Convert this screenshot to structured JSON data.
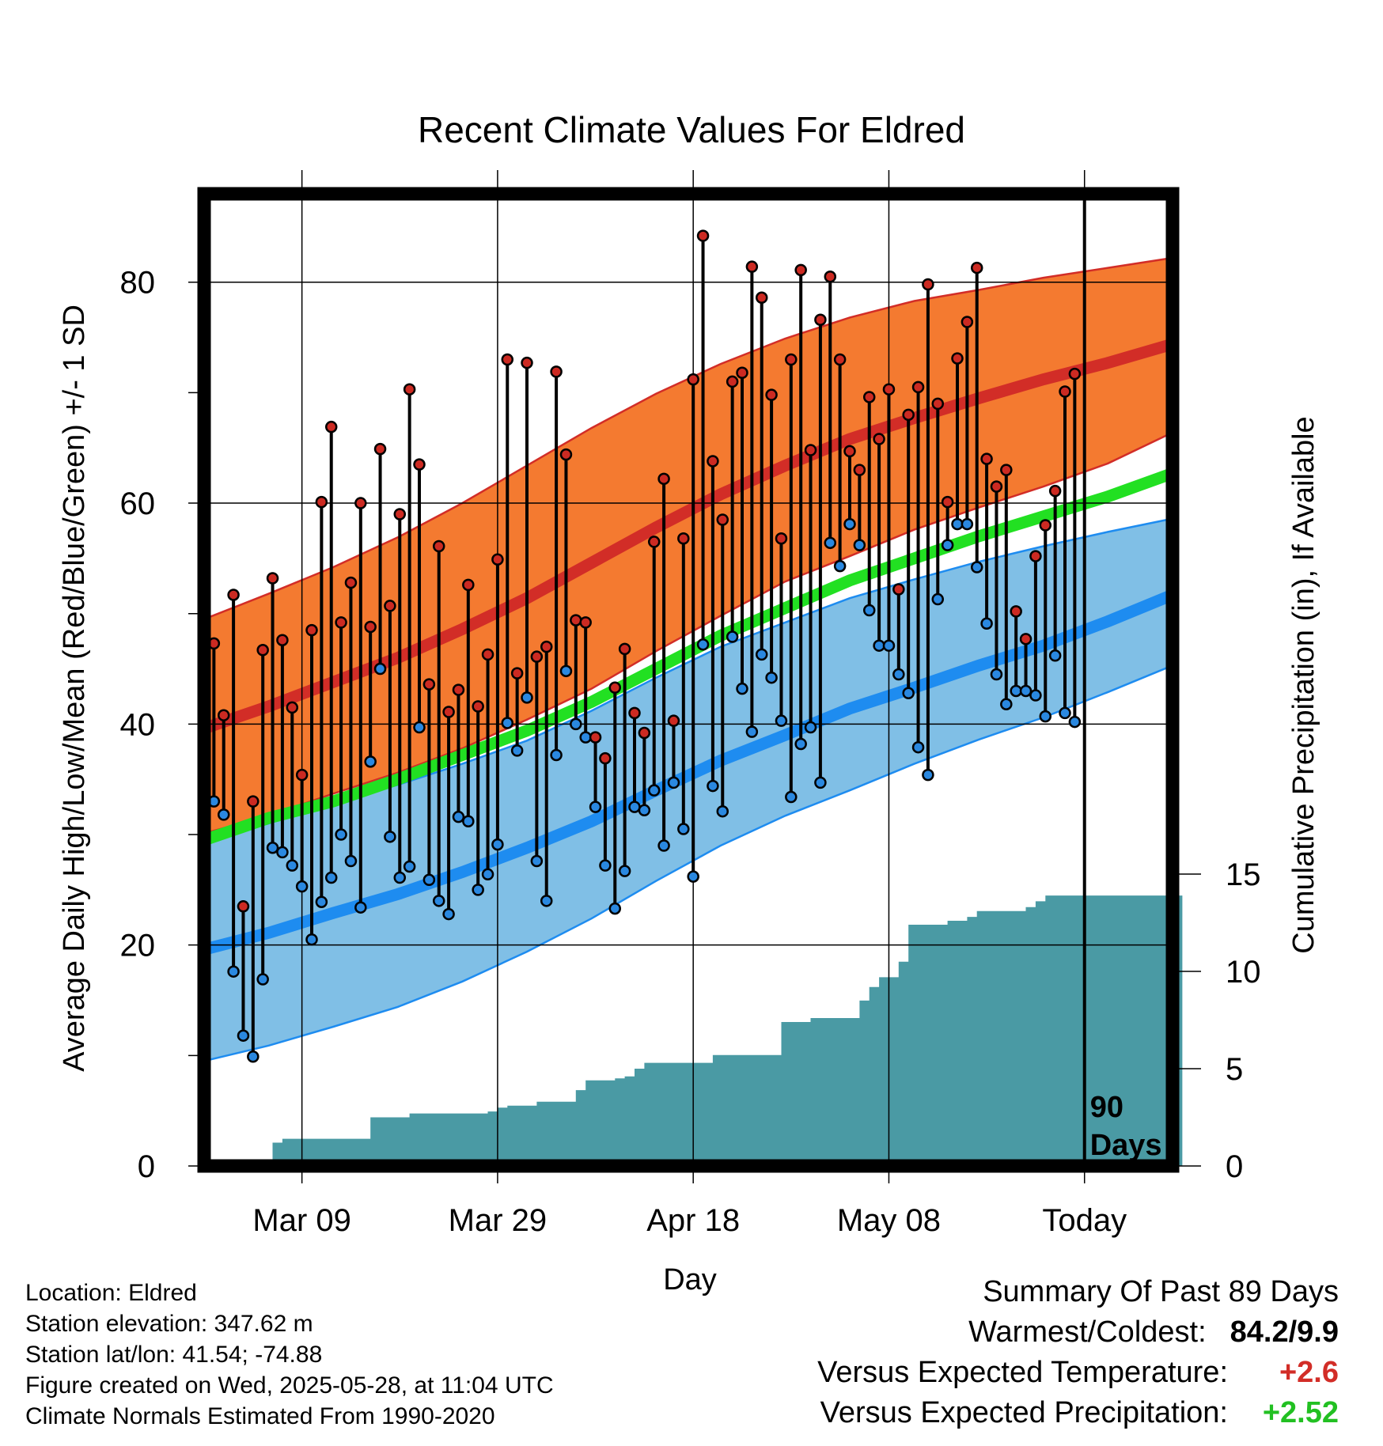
{
  "chart_data": {
    "type": "line",
    "title": "Recent Climate Values For Eldred",
    "xlabel": "Day",
    "ylabel_left": "Average Daily High/Low/Mean (Red/Blue/Green) +/- 1 SD",
    "ylabel_right": "Cumulative Precipitation (in), If Available",
    "x_tick_labels": [
      "Mar 09",
      "Mar 29",
      "Apr 18",
      "May 08",
      "Today"
    ],
    "x_tick_days": [
      10,
      30,
      50,
      70,
      90
    ],
    "x_range_days": [
      0,
      99
    ],
    "y_left_ticks": [
      0,
      20,
      40,
      60,
      80
    ],
    "y_left_range": [
      0,
      88
    ],
    "y_right_ticks": [
      0,
      5,
      10,
      15
    ],
    "marker_label": "90 Days",
    "colors": {
      "high_band": "#f47a30",
      "high_line": "#d22d27",
      "low_band": "#80bfe6",
      "low_line": "#1e8cf0",
      "mean_line": "#22e022",
      "precip": "#4a9aa4",
      "high_marker": "#cc2a22",
      "low_marker": "#2a88e0"
    },
    "normal_high": [
      39.6,
      41.6,
      43.8,
      46.0,
      48.6,
      51.4,
      54.6,
      57.8,
      60.8,
      63.4,
      65.8,
      67.7,
      69.5,
      71.2,
      72.7,
      74.4
    ],
    "normal_high_upper": [
      49.5,
      51.8,
      54.2,
      56.9,
      60.0,
      63.4,
      66.8,
      69.9,
      72.6,
      74.9,
      76.8,
      78.3,
      79.3,
      80.4,
      81.3,
      82.2
    ],
    "normal_high_lower": [
      30.1,
      31.7,
      33.7,
      35.6,
      37.8,
      40.4,
      43.2,
      46.6,
      49.8,
      52.9,
      55.2,
      57.6,
      59.6,
      61.5,
      63.6,
      66.4
    ],
    "normal_mean": [
      29.5,
      31.5,
      33.0,
      35.0,
      37.2,
      39.4,
      42.0,
      45.0,
      48.0,
      50.5,
      53.0,
      55.0,
      57.0,
      58.8,
      60.6,
      62.7
    ],
    "normal_low": [
      19.6,
      21.1,
      22.9,
      24.6,
      26.6,
      28.8,
      31.2,
      34.0,
      36.7,
      39.0,
      41.4,
      43.3,
      45.3,
      47.1,
      49.3,
      51.7
    ],
    "normal_low_upper": [
      29.5,
      31.0,
      32.9,
      34.5,
      36.4,
      38.5,
      41.2,
      44.2,
      47.0,
      49.2,
      51.4,
      53.1,
      54.7,
      56.1,
      57.4,
      58.6
    ],
    "normal_low_lower": [
      9.5,
      10.9,
      12.6,
      14.4,
      16.7,
      19.4,
      22.4,
      25.8,
      29.0,
      31.7,
      34.0,
      36.4,
      38.6,
      40.6,
      42.9,
      45.3
    ],
    "daily_high": [
      47.3,
      40.8,
      51.7,
      23.5,
      33.0,
      46.7,
      53.2,
      47.6,
      41.5,
      35.4,
      48.5,
      60.1,
      66.9,
      49.2,
      52.8,
      60.0,
      48.8,
      64.9,
      50.7,
      59.0,
      70.3,
      63.5,
      43.6,
      56.1,
      41.1,
      43.1,
      52.6,
      41.6,
      46.3,
      54.9,
      73.0,
      44.6,
      72.7,
      46.1,
      47.0,
      71.9,
      64.4,
      49.4,
      49.2,
      38.8,
      36.9,
      43.3,
      46.8,
      41.0,
      39.2,
      56.5,
      62.2,
      40.3,
      56.8,
      71.2,
      84.2,
      63.8,
      58.5,
      71.0,
      71.8,
      81.4,
      78.6,
      69.8,
      56.8,
      73.0,
      81.1,
      64.8,
      76.6,
      80.5,
      73.0,
      64.7,
      63.0,
      69.6,
      65.8,
      70.3,
      52.2,
      68.0,
      70.5,
      79.8,
      69.0,
      60.1,
      73.1,
      76.4,
      81.3,
      64.0,
      61.5,
      63.0,
      50.2,
      47.7,
      55.2,
      58.0,
      61.1,
      70.1,
      71.7
    ],
    "daily_low": [
      33.0,
      31.8,
      17.6,
      11.8,
      9.9,
      16.9,
      28.8,
      28.4,
      27.2,
      25.3,
      20.5,
      23.9,
      26.1,
      30.0,
      27.6,
      23.4,
      36.6,
      45.0,
      29.8,
      26.1,
      27.1,
      39.7,
      25.9,
      24.0,
      22.8,
      31.6,
      31.2,
      25.0,
      26.4,
      29.1,
      40.1,
      37.6,
      42.4,
      27.6,
      24.0,
      37.2,
      44.8,
      40.0,
      38.8,
      32.5,
      27.2,
      23.3,
      26.7,
      32.5,
      32.2,
      34.0,
      29.0,
      34.7,
      30.5,
      26.2,
      47.2,
      34.4,
      32.1,
      47.9,
      43.2,
      39.3,
      46.3,
      44.2,
      40.3,
      33.4,
      38.2,
      39.7,
      34.7,
      56.4,
      54.3,
      58.1,
      56.2,
      50.3,
      47.1,
      47.1,
      44.5,
      42.8,
      37.9,
      35.4,
      51.3,
      56.2,
      58.1,
      58.1,
      54.2,
      49.1,
      44.5,
      41.8,
      43.0,
      43.0,
      42.6,
      40.7,
      46.2,
      41.0,
      40.2
    ],
    "cumulative_precip": [
      0,
      0,
      0,
      0,
      0,
      0,
      0.2,
      1.2,
      1.4,
      1.4,
      1.4,
      1.4,
      1.4,
      1.4,
      1.4,
      1.4,
      1.4,
      2.5,
      2.5,
      2.5,
      2.5,
      2.7,
      2.7,
      2.7,
      2.7,
      2.7,
      2.7,
      2.7,
      2.7,
      2.8,
      3.0,
      3.1,
      3.1,
      3.1,
      3.3,
      3.3,
      3.3,
      3.3,
      3.9,
      4.4,
      4.4,
      4.4,
      4.5,
      4.6,
      5.0,
      5.3,
      5.3,
      5.3,
      5.3,
      5.3,
      5.3,
      5.3,
      5.7,
      5.7,
      5.7,
      5.7,
      5.7,
      5.7,
      5.7,
      7.4,
      7.4,
      7.4,
      7.6,
      7.6,
      7.6,
      7.6,
      7.6,
      8.5,
      9.2,
      9.7,
      9.7,
      10.5,
      12.4,
      12.4,
      12.4,
      12.4,
      12.6,
      12.6,
      12.8,
      13.1,
      13.1,
      13.1,
      13.1,
      13.1,
      13.3,
      13.6,
      13.9,
      13.9,
      13.9,
      13.9,
      13.9,
      13.9,
      13.9,
      13.9,
      13.9,
      13.9,
      13.9,
      13.9,
      13.9,
      13.9
    ]
  },
  "info": {
    "location": "Location: Eldred",
    "elevation": "Station elevation: 347.62 m",
    "latlon": "Station lat/lon: 41.54; -74.88",
    "created": "Figure created on Wed, 2025-05-28, at 11:04 UTC",
    "normals": "Climate Normals Estimated From 1990-2020"
  },
  "summary": {
    "heading": "Summary Of Past 89 Days",
    "warm_cold_label": "Warmest/Coldest:",
    "warm_cold_value": "84.2/9.9",
    "temp_label": "Versus Expected Temperature:",
    "temp_value": "+2.6",
    "temp_color": "#d22d27",
    "precip_label": "Versus Expected Precipitation:",
    "precip_value": "+2.52",
    "precip_color": "#22c022"
  }
}
